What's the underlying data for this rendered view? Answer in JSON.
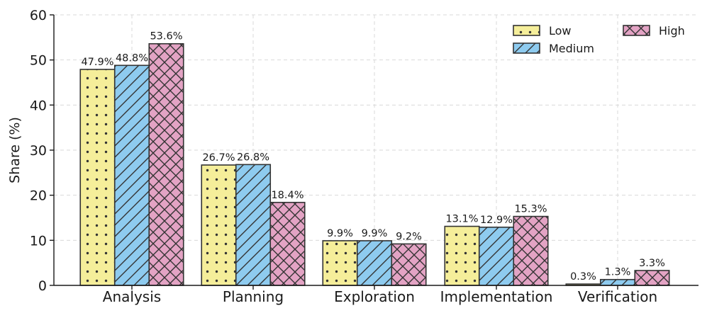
{
  "chart_data": {
    "type": "bar",
    "title": "",
    "xlabel": "",
    "ylabel": "Share (%)",
    "ylim": [
      0,
      60
    ],
    "yticks": [
      0,
      10,
      20,
      30,
      40,
      50,
      60
    ],
    "grid": true,
    "legend_position": "top-right",
    "categories": [
      "Analysis",
      "Planning",
      "Exploration",
      "Implementation",
      "Verification"
    ],
    "series": [
      {
        "name": "Low",
        "color": "#f5ee9a",
        "pattern": "dots",
        "values": [
          47.9,
          26.7,
          9.9,
          13.1,
          0.3
        ],
        "labels": [
          "47.9%",
          "26.7%",
          "9.9%",
          "13.1%",
          "0.3%"
        ]
      },
      {
        "name": "Medium",
        "color": "#8ecbef",
        "pattern": "diagonal",
        "values": [
          48.8,
          26.8,
          9.9,
          12.9,
          1.3
        ],
        "labels": [
          "48.8%",
          "26.8%",
          "9.9%",
          "12.9%",
          "1.3%"
        ]
      },
      {
        "name": "High",
        "color": "#e3a3c4",
        "pattern": "crosshatch",
        "values": [
          53.6,
          18.4,
          9.2,
          15.3,
          3.3
        ],
        "labels": [
          "53.6%",
          "18.4%",
          "9.2%",
          "15.3%",
          "3.3%"
        ]
      }
    ]
  }
}
